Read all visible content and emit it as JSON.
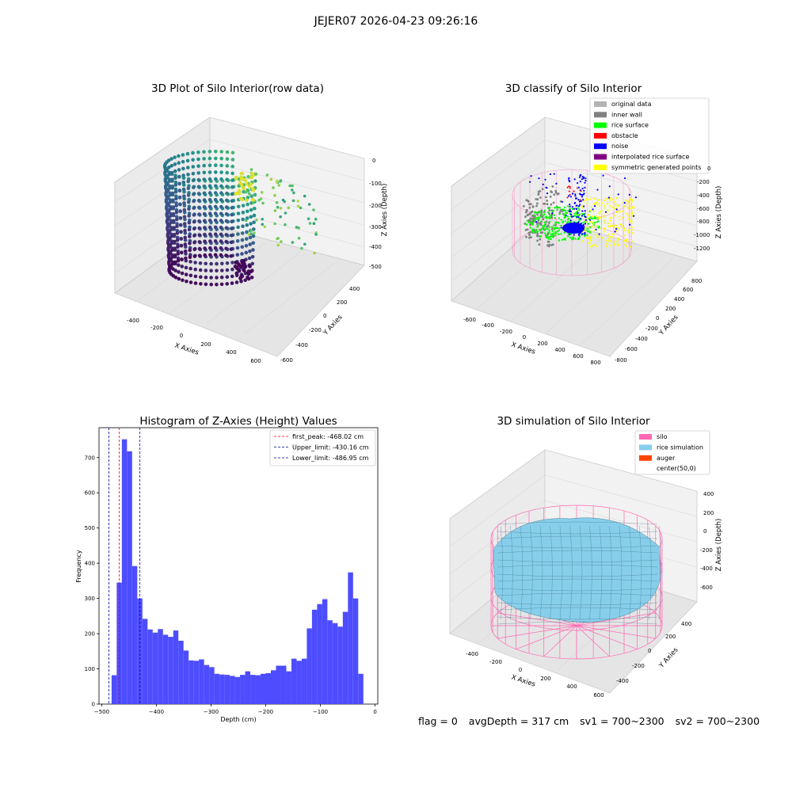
{
  "suptitle": "JEJER07 2026-04-23 09:26:16",
  "footer": {
    "flag": "flag = 0",
    "avg": "avgDepth = 317 cm",
    "sv1": "sv1 = 700~2300",
    "sv2": "sv2 = 700~2300"
  },
  "colors": {
    "original": "#b3b3b3",
    "inner_wall": "#808080",
    "rice_surface": "#00ff00",
    "obstacle": "#ff0000",
    "noise": "#0000ff",
    "interpolated": "#800080",
    "symmetric": "#ffff00",
    "silo": "#ff69b4",
    "rice_sim": "#87ceeb",
    "auger": "#ff4500",
    "hist_bar": "#4d4dff",
    "first_peak": "#ff0000",
    "limits": "#0000aa"
  },
  "chart_data": [
    {
      "type": "scatter3d",
      "title": "3D Plot of Silo Interior(row data)",
      "xlabel": "X Axies",
      "ylabel": "Y Axies",
      "zlabel": "Z Axies (Depth)",
      "xticks": [
        "-400",
        "-200",
        "0",
        "200",
        "400",
        "600"
      ],
      "yticks": [
        "-600",
        "-400",
        "-200",
        "0",
        "200",
        "400"
      ],
      "zticks": [
        "0",
        "-100",
        "-200",
        "-300",
        "-400",
        "-500"
      ],
      "colormap": "viridis"
    },
    {
      "type": "scatter3d",
      "title": "3D classify of Silo Interior",
      "xlabel": "X Axies",
      "ylabel": "Y Axies",
      "zlabel": "Z Axies (Depth)",
      "xticks": [
        "-600",
        "-400",
        "-200",
        "0",
        "200",
        "400",
        "600",
        "800"
      ],
      "yticks": [
        "-800",
        "-600",
        "-400",
        "-200",
        "0",
        "200",
        "400",
        "600",
        "800"
      ],
      "zticks": [
        "0",
        "-200",
        "-400",
        "-600",
        "-800",
        "-1000",
        "-1200"
      ],
      "legend": [
        {
          "label": "original data",
          "color": "#b3b3b3"
        },
        {
          "label": "inner wall",
          "color": "#808080"
        },
        {
          "label": "rice surface",
          "color": "#00ff00"
        },
        {
          "label": "obstacle",
          "color": "#ff0000"
        },
        {
          "label": "noise",
          "color": "#0000ff"
        },
        {
          "label": "interpolated rice surface",
          "color": "#800080"
        },
        {
          "label": "symmetric generated points",
          "color": "#ffff00"
        }
      ]
    },
    {
      "type": "bar",
      "title": "Histogram of Z-Axies (Height) Values",
      "xlabel": "Depth (cm)",
      "ylabel": "Frequency",
      "xlim": [
        -505,
        5
      ],
      "ylim": [
        0,
        785
      ],
      "xticks": [
        -500,
        -400,
        -300,
        -200,
        -100,
        0
      ],
      "yticks": [
        0,
        100,
        200,
        300,
        400,
        500,
        600,
        700
      ],
      "bin_start": -482,
      "bin_width": 9.4,
      "values": [
        82,
        345,
        752,
        718,
        392,
        300,
        242,
        212,
        203,
        213,
        197,
        191,
        209,
        180,
        152,
        124,
        123,
        127,
        111,
        105,
        86,
        84,
        83,
        80,
        77,
        83,
        93,
        83,
        82,
        86,
        88,
        96,
        109,
        109,
        93,
        129,
        123,
        129,
        215,
        268,
        284,
        298,
        238,
        230,
        220,
        262,
        374,
        300,
        86
      ],
      "vlines": [
        {
          "label": "first_peak: -468.02 cm",
          "x": -468.02,
          "color": "#ff0000"
        },
        {
          "label": "Upper_limit: -430.16 cm",
          "x": -430.16,
          "color": "#0000aa"
        },
        {
          "label": "Lower_limit: -486.95 cm",
          "x": -486.95,
          "color": "#0000aa"
        }
      ]
    },
    {
      "type": "surface3d",
      "title": "3D simulation of Silo Interior",
      "xlabel": "X Axies",
      "ylabel": "Y Axies",
      "zlabel": "Z Axies (Depth)",
      "xticks": [
        "-400",
        "-200",
        "0",
        "200",
        "400",
        "600"
      ],
      "yticks": [
        "-400",
        "-200",
        "0",
        "200",
        "400"
      ],
      "zticks": [
        "400",
        "200",
        "0",
        "-200",
        "-400",
        "-600"
      ],
      "legend": [
        {
          "label": "silo",
          "color": "#ff69b4"
        },
        {
          "label": "rice simulation",
          "color": "#87ceeb"
        },
        {
          "label": "auger",
          "color": "#ff4500"
        },
        {
          "label": "center(50,0)",
          "color": ""
        }
      ]
    }
  ]
}
